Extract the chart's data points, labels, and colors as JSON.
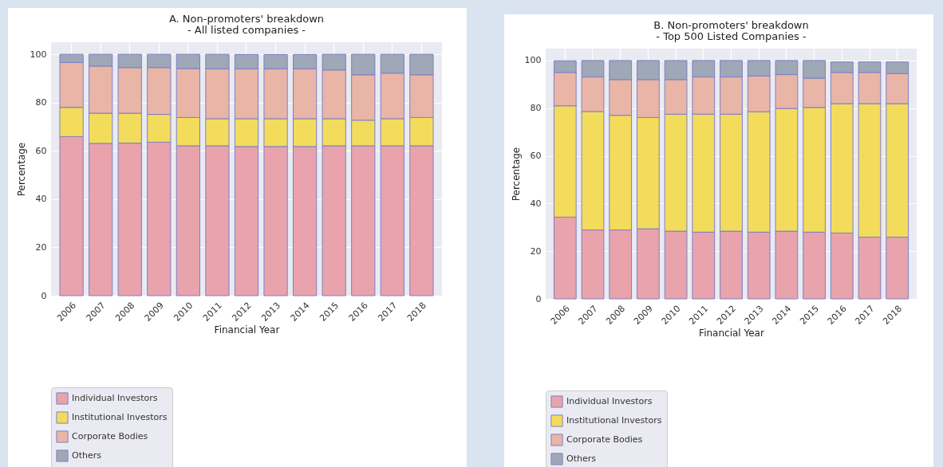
{
  "chart_data": [
    {
      "type": "bar",
      "title": "A. Non-promoters' breakdown",
      "subtitle": "- All listed companies -",
      "xlabel": "Financial Year",
      "ylabel": "Percentage",
      "categories": [
        "2006",
        "2007",
        "2008",
        "2009",
        "2010",
        "2011",
        "2012",
        "2013",
        "2014",
        "2015",
        "2016",
        "2017",
        "2018"
      ],
      "stacked": true,
      "ylim": [
        0,
        105
      ],
      "yticks": [
        0,
        20,
        40,
        60,
        80,
        100
      ],
      "grid": true,
      "legend": "bottom",
      "series": [
        {
          "name": "Individual Investors",
          "color": "#e8a3ac",
          "values": [
            65.9,
            63.1,
            63.2,
            63.6,
            62.1,
            62.1,
            61.8,
            61.8,
            61.8,
            62.1,
            62.1,
            62.1,
            62.1
          ]
        },
        {
          "name": "Institutional Investors",
          "color": "#f3dc5c",
          "values": [
            12.1,
            12.5,
            12.4,
            11.5,
            11.7,
            11.2,
            11.5,
            11.5,
            11.5,
            11.2,
            10.6,
            11.2,
            11.7
          ]
        },
        {
          "name": "Corporate Bodies",
          "color": "#e9b5a6",
          "values": [
            18.6,
            19.5,
            18.9,
            19.4,
            20.3,
            20.7,
            20.7,
            20.7,
            20.7,
            20.2,
            18.8,
            18.9,
            17.7
          ]
        },
        {
          "name": "Others",
          "color": "#9ea8b6",
          "values": [
            3.4,
            4.9,
            5.5,
            5.5,
            5.9,
            6.0,
            5.9,
            5.9,
            5.9,
            6.5,
            8.5,
            7.8,
            8.5
          ]
        }
      ]
    },
    {
      "type": "bar",
      "title": "B. Non-promoters' breakdown",
      "subtitle": "- Top 500 Listed Companies -",
      "xlabel": "Financial Year",
      "ylabel": "Percentage",
      "categories": [
        "2006",
        "2007",
        "2008",
        "2009",
        "2010",
        "2011",
        "2012",
        "2013",
        "2014",
        "2015",
        "2016",
        "2017",
        "2018"
      ],
      "stacked": true,
      "ylim": [
        0,
        105
      ],
      "yticks": [
        0,
        20,
        40,
        60,
        80,
        100
      ],
      "grid": true,
      "legend": "bottom",
      "series": [
        {
          "name": "Individual Investors",
          "color": "#e8a3ac",
          "values": [
            34.3,
            28.9,
            28.9,
            29.4,
            28.4,
            28.0,
            28.4,
            28.0,
            28.4,
            28.0,
            27.6,
            25.9,
            25.9
          ]
        },
        {
          "name": "Institutional Investors",
          "color": "#f3dc5c",
          "values": [
            46.7,
            49.7,
            48.1,
            46.7,
            49.1,
            49.5,
            49.1,
            50.5,
            51.5,
            52.3,
            54.3,
            56.0,
            56.0
          ]
        },
        {
          "name": "Corporate Bodies",
          "color": "#e9b5a6",
          "values": [
            14.0,
            14.5,
            15.0,
            15.9,
            14.5,
            15.6,
            15.6,
            15.0,
            14.2,
            12.3,
            13.1,
            13.1,
            12.6
          ]
        },
        {
          "name": "Others",
          "color": "#9ea8b6",
          "values": [
            4.9,
            6.9,
            8.0,
            8.0,
            8.0,
            6.9,
            6.9,
            6.5,
            5.9,
            7.4,
            4.4,
            4.4,
            4.9
          ]
        }
      ]
    }
  ]
}
